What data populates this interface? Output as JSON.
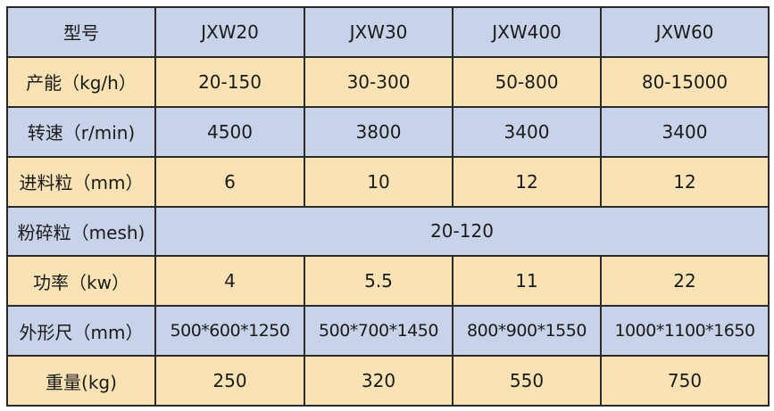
{
  "colors": {
    "blue_row": "#c8d3ea",
    "yellow_row": "#f9e3b5",
    "border": "#2a2a2a"
  },
  "rows": [
    {
      "label": "型号",
      "values": [
        "JXW20",
        "JXW30",
        "JXW400",
        "JXW60"
      ]
    },
    {
      "label": "产能（kg/h）",
      "values": [
        "20-150",
        "30-300",
        "50-800",
        "80-15000"
      ]
    },
    {
      "label": "转速（r/min)",
      "values": [
        "4500",
        "3800",
        "3400",
        "3400"
      ]
    },
    {
      "label": "进料粒（mm）",
      "values": [
        "6",
        "10",
        "12",
        "12"
      ]
    },
    {
      "label": "粉碎粒（mesh)",
      "merged_value": "20-120"
    },
    {
      "label": "功率（kw）",
      "values": [
        "4",
        "5.5",
        "11",
        "22"
      ]
    },
    {
      "label": "外形尺（mm）",
      "values": [
        "500*600*1250",
        "500*700*1450",
        "800*900*1550",
        "1000*1100*1650"
      ]
    },
    {
      "label": "重量(kg)",
      "values": [
        "250",
        "320",
        "550",
        "750"
      ]
    }
  ]
}
